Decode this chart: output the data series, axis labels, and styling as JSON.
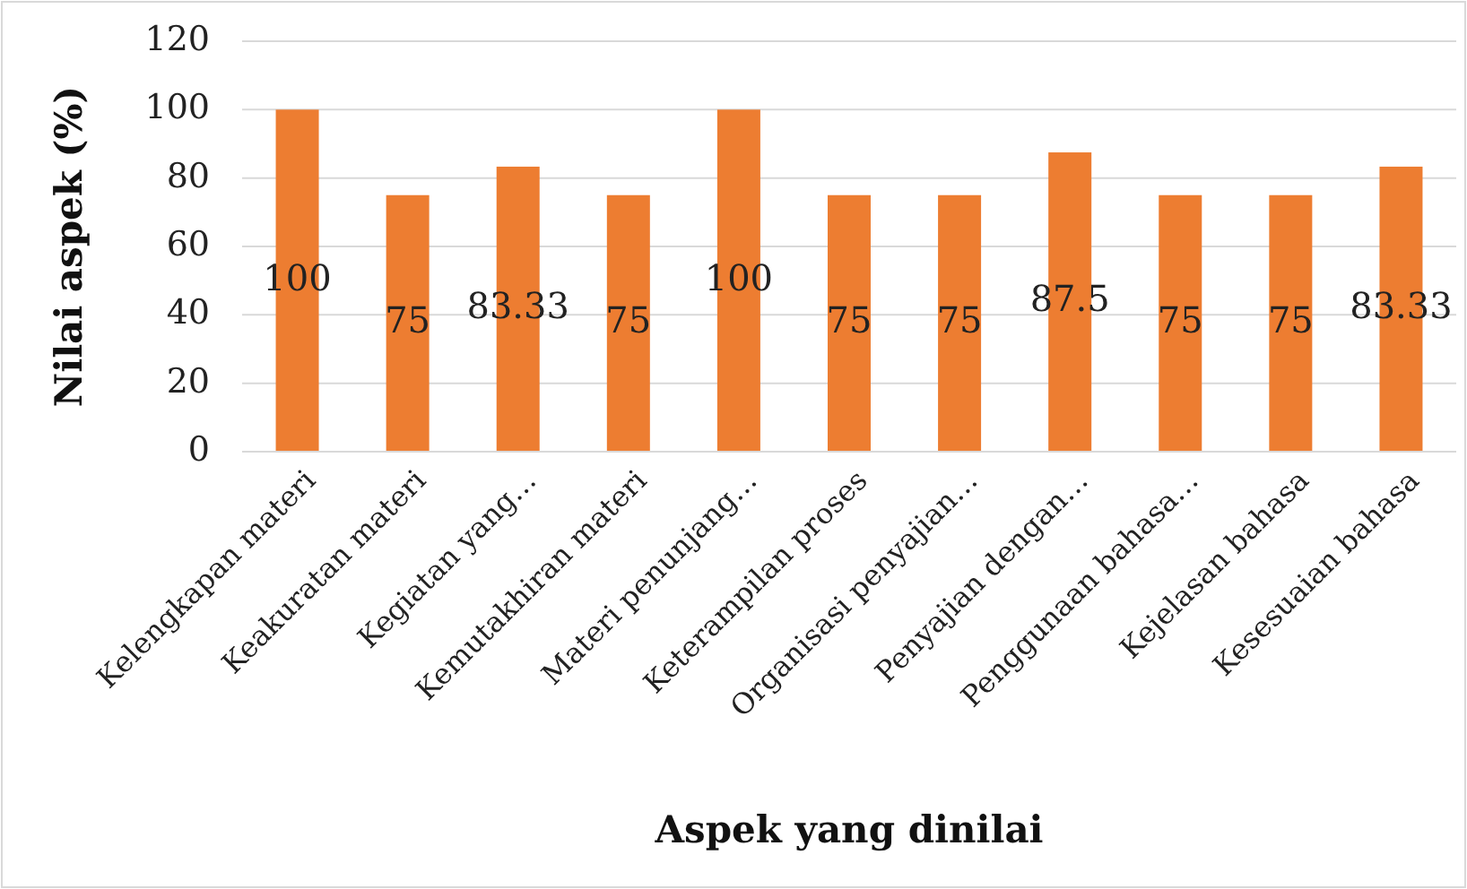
{
  "chart_data": {
    "type": "bar",
    "xlabel": "Aspek yang dinilai",
    "ylabel": "Nilai aspek  (%)",
    "categories": [
      "Kelengkapan materi",
      "Keakuratan materi",
      "Kegiatan yang…",
      "Kemutakhiran materi",
      "Materi penunjang…",
      "Keterampilan proses",
      "Organisasi penyajian…",
      "Penyajian dengan…",
      "Penggunaan bahasa…",
      "Kejelasan bahasa",
      "Kesesuaian bahasa"
    ],
    "values": [
      100,
      75,
      83.33,
      75,
      100,
      75,
      75,
      87.5,
      75,
      75,
      83.33
    ],
    "color": "#ed7d31",
    "ylim": [
      0,
      120
    ],
    "yticks": [
      0,
      20,
      40,
      60,
      80,
      100,
      120
    ],
    "grid": "y",
    "data_labels": true
  }
}
